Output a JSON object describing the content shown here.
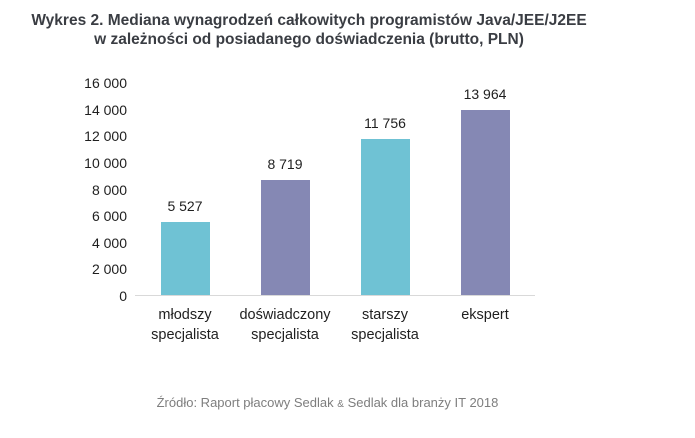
{
  "title": {
    "line1": "Wykres 2. Mediana wynagrodzeń całkowitych programistów Java/JEE/J2EE",
    "line2": "w zależności od posiadanego doświadczenia (brutto, PLN)"
  },
  "footer": {
    "prefix": "Źródło: Raport płacowy Sedlak",
    "ampersand": "&",
    "suffix": "Sedlak dla branży IT 2018"
  },
  "chart_data": {
    "type": "bar",
    "title": "Wykres 2. Mediana wynagrodzeń całkowitych programistów Java/JEE/J2EE w zależności od posiadanego doświadczenia (brutto, PLN)",
    "categories": [
      "młodszy\nspecjalista",
      "doświadczony\nspecjalista",
      "starszy\nspecjalista",
      "ekspert"
    ],
    "values": [
      5527,
      8719,
      11756,
      13964
    ],
    "value_labels": [
      "5 527",
      "8 719",
      "11 756",
      "13 964"
    ],
    "y_tick_labels": [
      "16 000",
      "14 000",
      "12 000",
      "10 000",
      "8 000",
      "6 000",
      "4 000",
      "2 000",
      "0"
    ],
    "ylim": [
      0,
      16000
    ],
    "xlabel": "",
    "ylabel": "",
    "grid": false,
    "legend": false,
    "bar_colors": [
      "#6fc2d4",
      "#8588b4"
    ],
    "axis_line_color": "#d9d9d9",
    "source": "Źródło: Raport płacowy Sedlak & Sedlak dla branży IT 2018"
  }
}
